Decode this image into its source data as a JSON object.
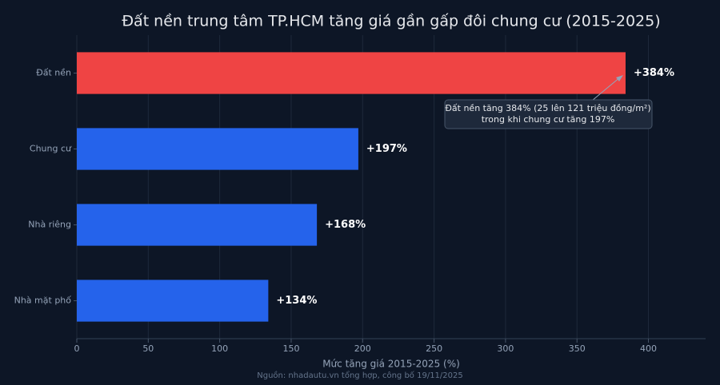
{
  "chart_data": {
    "type": "bar",
    "orientation": "horizontal",
    "title": "Đất nền trung tâm TP.HCM tăng giá gần gấp đôi chung cư (2015-2025)",
    "x_label": "Mức tăng giá 2015-2025 (%)",
    "source": "Nguồn: nhadautu.vn tổng hợp, công bố 19/11/2025",
    "categories": [
      "Đất nền",
      "Chung cư",
      "Nhà riêng",
      "Nhà mặt phố"
    ],
    "values": [
      384,
      197,
      168,
      134
    ],
    "value_labels": [
      "+384%",
      "+197%",
      "+168%",
      "+134%"
    ],
    "colors": [
      "#ef4444",
      "#2563eb",
      "#2563eb",
      "#2563eb"
    ],
    "xlim": [
      0,
      440
    ],
    "xticks": [
      0,
      50,
      100,
      150,
      200,
      250,
      300,
      350,
      400
    ],
    "grid": true,
    "annotation": [
      "Đất nền tăng 384% (25 lên 121 triệu đồng/m²)",
      "trong khi chung cư tăng 197%"
    ]
  }
}
